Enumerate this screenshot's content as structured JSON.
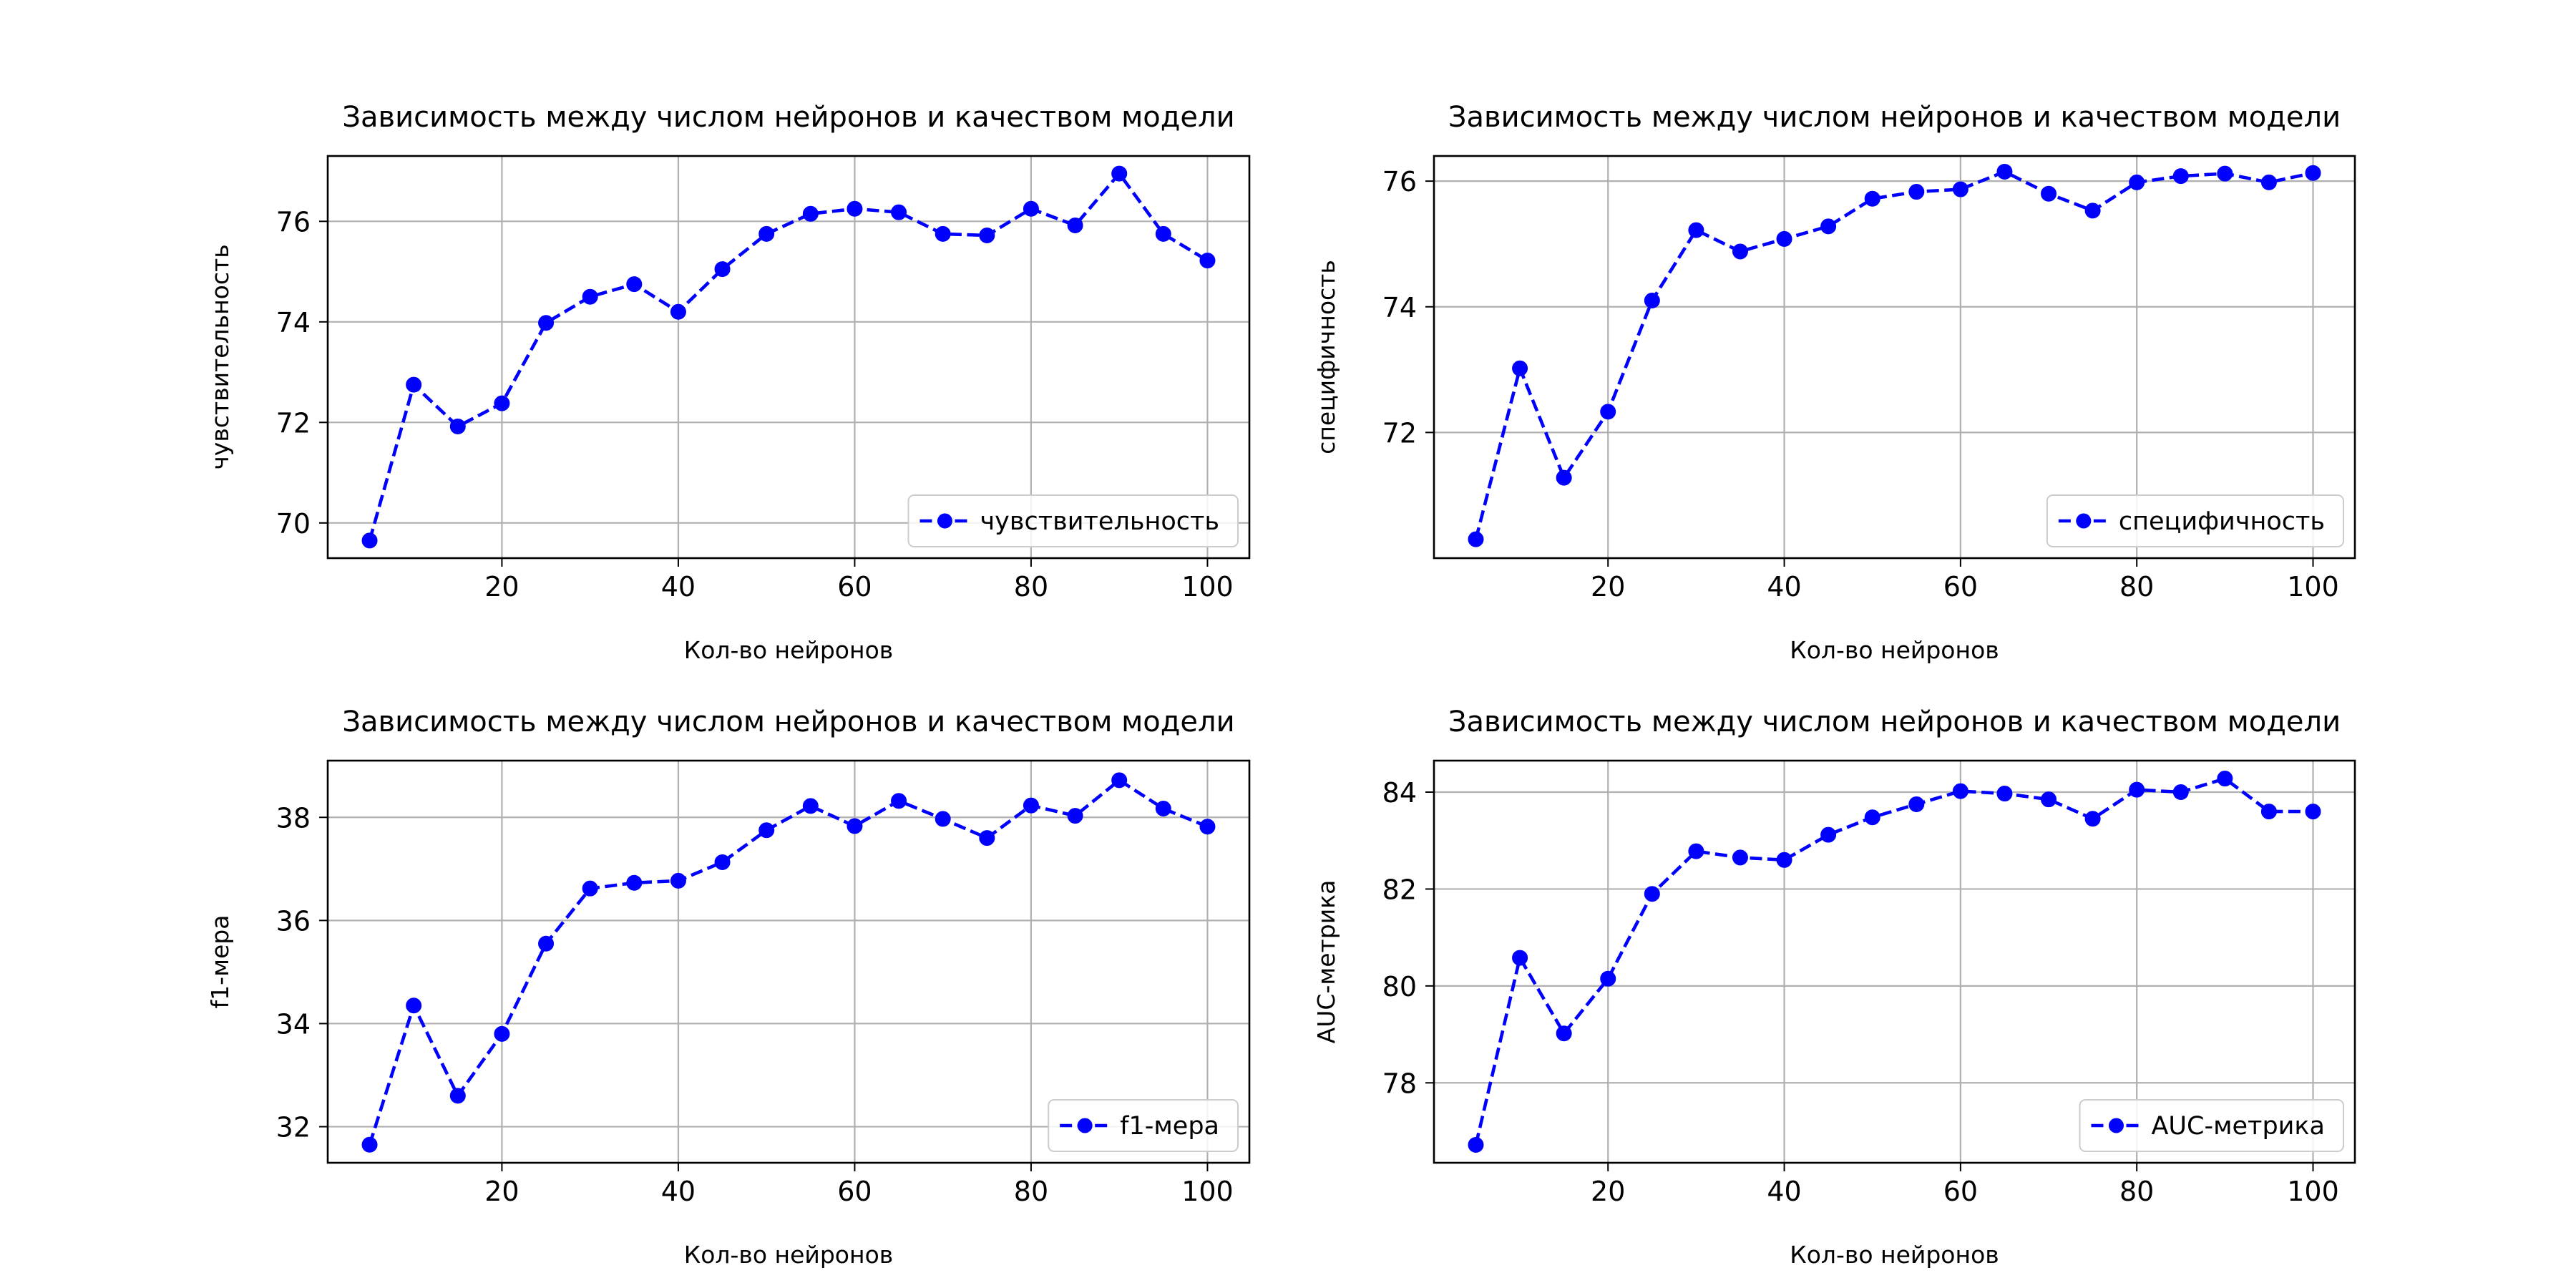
{
  "chart_data": [
    {
      "type": "line",
      "title": "Зависимость между числом нейронов и качеством модели",
      "xlabel": "Кол-во нейронов",
      "ylabel": "чувствительность",
      "x": [
        5,
        10,
        15,
        20,
        25,
        30,
        35,
        40,
        45,
        50,
        55,
        60,
        65,
        70,
        75,
        80,
        85,
        90,
        95,
        100
      ],
      "series": [
        {
          "name": "чувствительность",
          "values": [
            69.65,
            72.75,
            71.92,
            72.38,
            73.98,
            74.5,
            74.75,
            74.2,
            75.05,
            75.75,
            76.15,
            76.25,
            76.18,
            75.75,
            75.72,
            76.25,
            75.92,
            76.95,
            75.75,
            75.22
          ]
        }
      ],
      "xlim": [
        0.25,
        104.75
      ],
      "ylim": [
        69.3,
        77.3
      ],
      "xticks": [
        20,
        40,
        60,
        80,
        100
      ],
      "yticks": [
        70,
        72,
        74,
        76
      ],
      "grid": true,
      "legend": "lower right",
      "color": "#0000ff"
    },
    {
      "type": "line",
      "title": "Зависимость между числом нейронов и качеством модели",
      "xlabel": "Кол-во нейронов",
      "ylabel": "специфичность",
      "x": [
        5,
        10,
        15,
        20,
        25,
        30,
        35,
        40,
        45,
        50,
        55,
        60,
        65,
        70,
        75,
        80,
        85,
        90,
        95,
        100
      ],
      "series": [
        {
          "name": "специфичность",
          "values": [
            70.3,
            73.02,
            71.28,
            72.33,
            74.1,
            75.22,
            74.88,
            75.08,
            75.28,
            75.72,
            75.83,
            75.87,
            76.15,
            75.8,
            75.53,
            75.98,
            76.08,
            76.12,
            75.98,
            76.13
          ]
        }
      ],
      "xlim": [
        0.25,
        104.75
      ],
      "ylim": [
        70.0,
        76.4
      ],
      "xticks": [
        20,
        40,
        60,
        80,
        100
      ],
      "yticks": [
        72,
        74,
        76
      ],
      "grid": true,
      "legend": "lower right",
      "color": "#0000ff"
    },
    {
      "type": "line",
      "title": "Зависимость между числом нейронов и качеством модели",
      "xlabel": "Кол-во нейронов",
      "ylabel": "f1-мера",
      "x": [
        5,
        10,
        15,
        20,
        25,
        30,
        35,
        40,
        45,
        50,
        55,
        60,
        65,
        70,
        75,
        80,
        85,
        90,
        95,
        100
      ],
      "series": [
        {
          "name": "f1-мера",
          "values": [
            31.65,
            34.35,
            32.6,
            33.8,
            35.55,
            36.62,
            36.73,
            36.77,
            37.13,
            37.75,
            38.22,
            37.83,
            38.32,
            37.97,
            37.6,
            38.23,
            38.03,
            38.72,
            38.17,
            37.82
          ]
        }
      ],
      "xlim": [
        0.25,
        104.75
      ],
      "ylim": [
        31.3,
        39.1
      ],
      "xticks": [
        20,
        40,
        60,
        80,
        100
      ],
      "yticks": [
        32,
        34,
        36,
        38
      ],
      "grid": true,
      "legend": "lower right",
      "color": "#0000ff"
    },
    {
      "type": "line",
      "title": "Зависимость между числом нейронов и качеством модели",
      "xlabel": "Кол-во нейронов",
      "ylabel": "AUC-метрика",
      "x": [
        5,
        10,
        15,
        20,
        25,
        30,
        35,
        40,
        45,
        50,
        55,
        60,
        65,
        70,
        75,
        80,
        85,
        90,
        95,
        100
      ],
      "series": [
        {
          "name": "AUC-метрика",
          "values": [
            76.72,
            80.58,
            79.02,
            80.15,
            81.9,
            82.78,
            82.65,
            82.6,
            83.12,
            83.48,
            83.75,
            84.02,
            83.97,
            83.85,
            83.45,
            84.05,
            84.0,
            84.28,
            83.6,
            83.6
          ]
        }
      ],
      "xlim": [
        0.25,
        104.75
      ],
      "ylim": [
        76.35,
        84.65
      ],
      "xticks": [
        20,
        40,
        60,
        80,
        100
      ],
      "yticks": [
        78,
        80,
        82,
        84
      ],
      "grid": true,
      "legend": "lower right",
      "color": "#0000ff"
    }
  ]
}
